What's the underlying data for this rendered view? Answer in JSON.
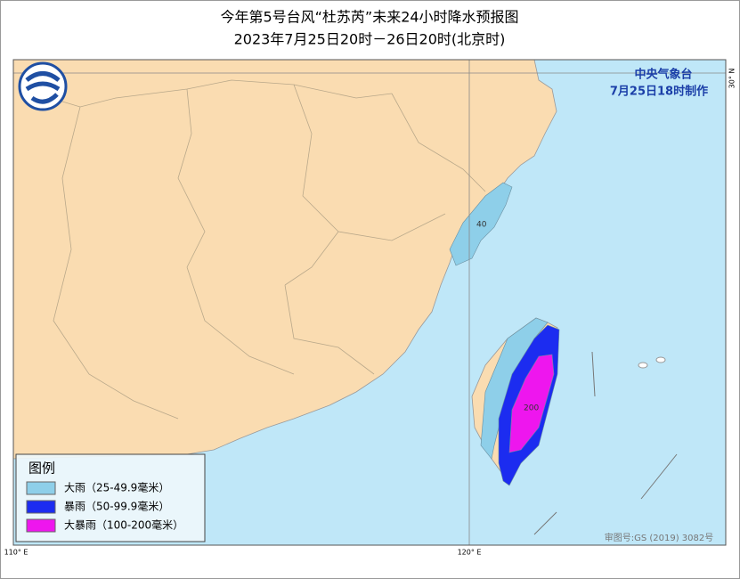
{
  "header": {
    "title": "今年第5号台风“杜苏芮”未来24小时降水预报图",
    "subtitle": "2023年7月25日20时－26日20时(北京时)"
  },
  "issuer": {
    "name": "中央气象台",
    "time": "7月25日18时制作"
  },
  "legend": {
    "title": "图例",
    "items": [
      {
        "label": "大雨（25-49.9毫米）",
        "color": "#8ecfe9"
      },
      {
        "label": "暴雨（50-99.9毫米）",
        "color": "#1c2cf0"
      },
      {
        "label": "大暴雨（100-200毫米）",
        "color": "#ee16ee"
      }
    ]
  },
  "map": {
    "contour_labels": [
      "40",
      "200"
    ],
    "lon_110": "110° E",
    "lon_120": "120° E",
    "lat_30": "30° N",
    "approval": "审图号:GS (2019) 3082号"
  }
}
